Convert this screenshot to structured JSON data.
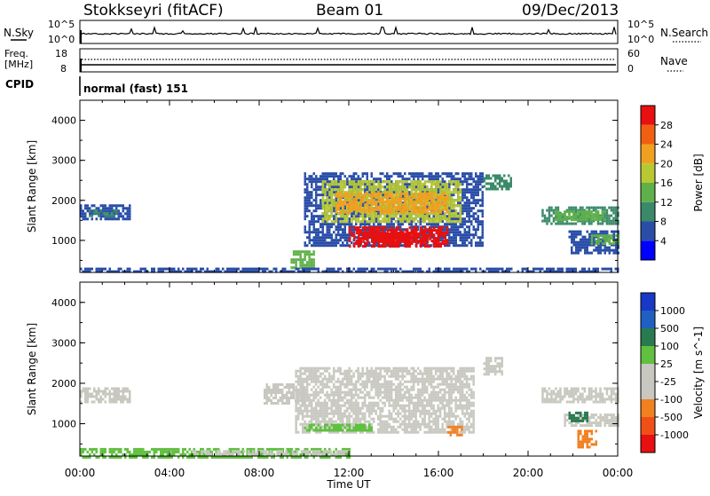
{
  "header": {
    "station": "Stokkseyri (fitACF)",
    "beam": "Beam 01",
    "date": "09/Dec/2013"
  },
  "noise_panel": {
    "left_label": "N.Sky",
    "right_label": "N.Search",
    "left_ticks": [
      "10^5",
      "10^0"
    ],
    "right_ticks": [
      "10^5",
      "10^0"
    ]
  },
  "freq_panel": {
    "left_label_1": "Freq.",
    "left_label_2": "[MHz]",
    "right_label": "Nave",
    "left_ticks": [
      "18",
      "8"
    ],
    "right_ticks": [
      "60",
      "0"
    ]
  },
  "cpid": {
    "label": "CPID",
    "value": "normal (fast) 151"
  },
  "colors": {
    "power_scale": [
      "#0000ff",
      "#2a4ea8",
      "#3a8a6a",
      "#5fb04a",
      "#b8c832",
      "#f0a020",
      "#f06010",
      "#e81010"
    ],
    "velocity_scale": [
      "#1838c8",
      "#2060c0",
      "#2a7a50",
      "#60c040",
      "#c8c8c0",
      "#c8c8c0",
      "#f08020",
      "#f05018",
      "#e81010"
    ]
  },
  "chart_data": [
    {
      "type": "heatmap",
      "name": "power",
      "x_ticks": [
        "00:00",
        "04:00",
        "08:00",
        "12:00",
        "16:00",
        "20:00",
        "00:00"
      ],
      "xlabel": "Time UT",
      "ylabel": "Slant Range [km]",
      "y_ticks": [
        "1000",
        "2000",
        "3000",
        "4000"
      ],
      "ylim": [
        200,
        4500
      ],
      "colorbar_label": "Power [dB]",
      "colorbar_ticks": [
        "4",
        "8",
        "12",
        "16",
        "20",
        "24",
        "28"
      ],
      "regions": [
        {
          "t0": 0.0,
          "t1": 2.2,
          "r0": 1550,
          "r1": 1900,
          "level": 1
        },
        {
          "t0": 0.4,
          "t1": 1.6,
          "r0": 1620,
          "r1": 1780,
          "level": 2
        },
        {
          "t0": 9.4,
          "t1": 10.4,
          "r0": 350,
          "r1": 750,
          "level": 3
        },
        {
          "t0": 10.0,
          "t1": 18.0,
          "r0": 850,
          "r1": 2700,
          "level": 1
        },
        {
          "t0": 10.8,
          "t1": 17.0,
          "r0": 1450,
          "r1": 2500,
          "level": 4
        },
        {
          "t0": 11.4,
          "t1": 16.4,
          "r0": 1700,
          "r1": 2200,
          "level": 5
        },
        {
          "t0": 12.0,
          "t1": 16.4,
          "r0": 850,
          "r1": 1350,
          "level": 7
        },
        {
          "t0": 12.6,
          "t1": 15.6,
          "r0": 950,
          "r1": 1200,
          "level": 8
        },
        {
          "t0": 13.0,
          "t1": 15.0,
          "r0": 1050,
          "r1": 1150,
          "level": 8
        },
        {
          "t0": 18.0,
          "t1": 19.2,
          "r0": 2300,
          "r1": 2650,
          "level": 2
        },
        {
          "t0": 20.6,
          "t1": 24.0,
          "r0": 1450,
          "r1": 1850,
          "level": 2
        },
        {
          "t0": 21.2,
          "t1": 23.4,
          "r0": 1550,
          "r1": 1750,
          "level": 3
        },
        {
          "t0": 21.8,
          "t1": 24.0,
          "r0": 700,
          "r1": 1250,
          "level": 1
        },
        {
          "t0": 22.8,
          "t1": 24.0,
          "r0": 900,
          "r1": 1150,
          "level": 3
        },
        {
          "t0": 0.0,
          "t1": 24.0,
          "r0": 200,
          "r1": 320,
          "level": 1
        }
      ]
    },
    {
      "type": "heatmap",
      "name": "velocity",
      "x_ticks": [
        "00:00",
        "04:00",
        "08:00",
        "12:00",
        "16:00",
        "20:00",
        "00:00"
      ],
      "xlabel": "Time UT",
      "ylabel": "Slant Range [km]",
      "y_ticks": [
        "1000",
        "2000",
        "3000",
        "4000"
      ],
      "ylim": [
        200,
        4500
      ],
      "colorbar_label": "Velocity [m s^-1]",
      "colorbar_ticks": [
        "1000",
        "500",
        "100",
        "25",
        "-25",
        "-100",
        "-500",
        "-1000"
      ],
      "regions": [
        {
          "t0": 0.0,
          "t1": 2.2,
          "r0": 1550,
          "r1": 1900,
          "level": 4
        },
        {
          "t0": 8.2,
          "t1": 10.0,
          "r0": 1500,
          "r1": 2000,
          "level": 4
        },
        {
          "t0": 9.6,
          "t1": 17.6,
          "r0": 800,
          "r1": 2400,
          "level": 4
        },
        {
          "t0": 10.0,
          "t1": 13.0,
          "r0": 850,
          "r1": 1000,
          "level": 3
        },
        {
          "t0": 16.4,
          "t1": 17.0,
          "r0": 750,
          "r1": 950,
          "level": 6
        },
        {
          "t0": 18.0,
          "t1": 18.8,
          "r0": 2250,
          "r1": 2650,
          "level": 4
        },
        {
          "t0": 20.6,
          "t1": 24.0,
          "r0": 1550,
          "r1": 1900,
          "level": 4
        },
        {
          "t0": 21.6,
          "t1": 24.0,
          "r0": 950,
          "r1": 1250,
          "level": 4
        },
        {
          "t0": 21.8,
          "t1": 22.6,
          "r0": 1100,
          "r1": 1300,
          "level": 2
        },
        {
          "t0": 22.2,
          "t1": 23.0,
          "r0": 450,
          "r1": 850,
          "level": 6
        },
        {
          "t0": 0.0,
          "t1": 12.0,
          "r0": 200,
          "r1": 400,
          "level": 3
        },
        {
          "t0": 5.0,
          "t1": 12.0,
          "r0": 220,
          "r1": 350,
          "level": 5
        }
      ]
    }
  ]
}
